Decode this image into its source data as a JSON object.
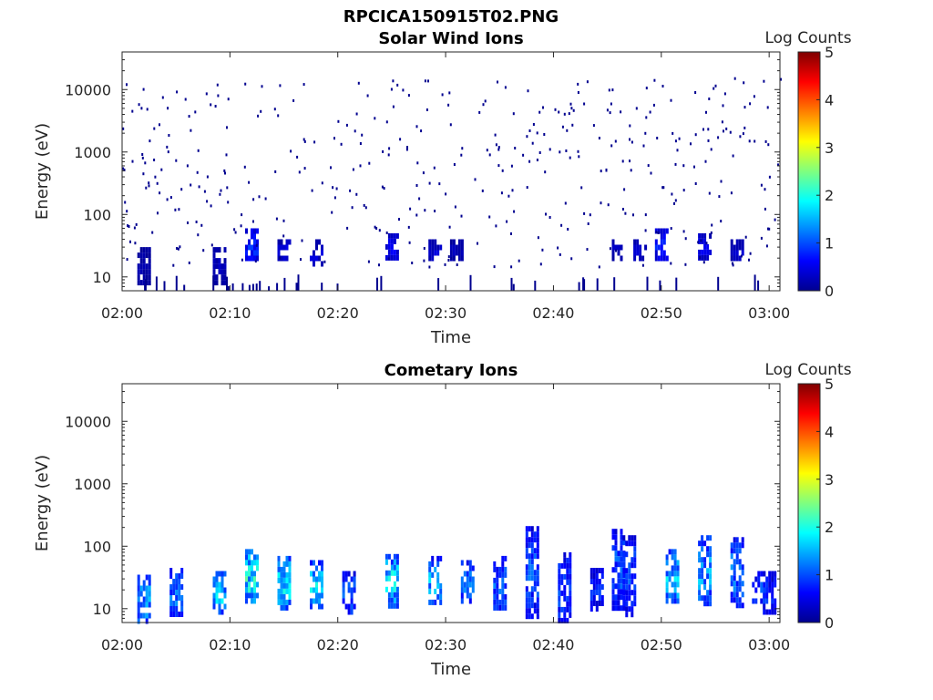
{
  "figure": {
    "title": "RPCICA150915T02.PNG"
  },
  "colors": {
    "colormap": "jet",
    "background": "#ffffff",
    "axis": "#262626"
  },
  "chart_data": [
    {
      "type": "heatmap",
      "title": "Solar Wind Ions",
      "xlabel": "Time",
      "ylabel": "Energy (eV)",
      "xlim": [
        "02:00",
        "03:01"
      ],
      "ylim": [
        6,
        40000
      ],
      "yscale": "log",
      "x_ticks": [
        "02:00",
        "02:10",
        "02:20",
        "02:30",
        "02:40",
        "02:50",
        "03:00"
      ],
      "y_ticks": [
        "10",
        "100",
        "1000",
        "10000"
      ],
      "colorbar": {
        "label": "Log Counts",
        "min": 0,
        "max": 5,
        "ticks": [
          "0",
          "1",
          "2",
          "3",
          "4",
          "5"
        ]
      },
      "cells_note": "sparse low-count speckle across all energies; dense low-energy bursts",
      "bursts": [
        {
          "t": "02:02",
          "e_low": 8,
          "e_high": 30,
          "level": 0.3
        },
        {
          "t": "02:09",
          "e_low": 8,
          "e_high": 30,
          "level": 0.4
        },
        {
          "t": "02:12",
          "e_low": 20,
          "e_high": 60,
          "level": 1.0
        },
        {
          "t": "02:15",
          "e_low": 20,
          "e_high": 40,
          "level": 0.6
        },
        {
          "t": "02:18",
          "e_low": 15,
          "e_high": 40,
          "level": 0.5
        },
        {
          "t": "02:25",
          "e_low": 20,
          "e_high": 50,
          "level": 0.7
        },
        {
          "t": "02:29",
          "e_low": 20,
          "e_high": 40,
          "level": 0.5
        },
        {
          "t": "02:31",
          "e_low": 20,
          "e_high": 40,
          "level": 0.4
        },
        {
          "t": "02:46",
          "e_low": 20,
          "e_high": 40,
          "level": 0.4
        },
        {
          "t": "02:48",
          "e_low": 20,
          "e_high": 40,
          "level": 0.5
        },
        {
          "t": "02:50",
          "e_low": 20,
          "e_high": 60,
          "level": 0.9
        },
        {
          "t": "02:54",
          "e_low": 20,
          "e_high": 50,
          "level": 0.7
        },
        {
          "t": "02:57",
          "e_low": 20,
          "e_high": 40,
          "level": 0.5
        }
      ]
    },
    {
      "type": "heatmap",
      "title": "Cometary Ions",
      "xlabel": "Time",
      "ylabel": "Energy (eV)",
      "xlim": [
        "02:00",
        "03:01"
      ],
      "ylim": [
        6,
        40000
      ],
      "yscale": "log",
      "x_ticks": [
        "02:00",
        "02:10",
        "02:20",
        "02:30",
        "02:40",
        "02:50",
        "03:00"
      ],
      "y_ticks": [
        "10",
        "100",
        "1000",
        "10000"
      ],
      "colorbar": {
        "label": "Log Counts",
        "min": 0,
        "max": 5,
        "ticks": [
          "0",
          "1",
          "2",
          "3",
          "4",
          "5"
        ]
      },
      "bursts": [
        {
          "t": "02:02",
          "e_low": 6,
          "e_high": 35,
          "level": 1.8
        },
        {
          "t": "02:05",
          "e_low": 8,
          "e_high": 45,
          "level": 1.5
        },
        {
          "t": "02:09",
          "e_low": 8,
          "e_high": 40,
          "level": 2.0
        },
        {
          "t": "02:12",
          "e_low": 12,
          "e_high": 90,
          "level": 2.4
        },
        {
          "t": "02:15",
          "e_low": 10,
          "e_high": 70,
          "level": 2.2
        },
        {
          "t": "02:18",
          "e_low": 10,
          "e_high": 60,
          "level": 2.1
        },
        {
          "t": "02:21",
          "e_low": 8,
          "e_high": 40,
          "level": 1.4
        },
        {
          "t": "02:25",
          "e_low": 12,
          "e_high": 75,
          "level": 2.2
        },
        {
          "t": "02:29",
          "e_low": 12,
          "e_high": 70,
          "level": 1.8
        },
        {
          "t": "02:32",
          "e_low": 12,
          "e_high": 60,
          "level": 1.6
        },
        {
          "t": "02:35",
          "e_low": 10,
          "e_high": 70,
          "level": 1.4
        },
        {
          "t": "02:38",
          "e_low": 8,
          "e_high": 210,
          "level": 1.3
        },
        {
          "t": "02:41",
          "e_low": 6,
          "e_high": 80,
          "level": 1.2
        },
        {
          "t": "02:44",
          "e_low": 10,
          "e_high": 45,
          "level": 1.0
        },
        {
          "t": "02:46",
          "e_low": 10,
          "e_high": 190,
          "level": 1.3
        },
        {
          "t": "02:47",
          "e_low": 8,
          "e_high": 150,
          "level": 1.2
        },
        {
          "t": "02:51",
          "e_low": 12,
          "e_high": 90,
          "level": 2.0
        },
        {
          "t": "02:54",
          "e_low": 12,
          "e_high": 150,
          "level": 1.8
        },
        {
          "t": "02:57",
          "e_low": 12,
          "e_high": 140,
          "level": 1.6
        },
        {
          "t": "02:59",
          "e_low": 12,
          "e_high": 40,
          "level": 1.2
        },
        {
          "t": "03:00",
          "e_low": 8,
          "e_high": 40,
          "level": 1.0
        }
      ]
    }
  ]
}
